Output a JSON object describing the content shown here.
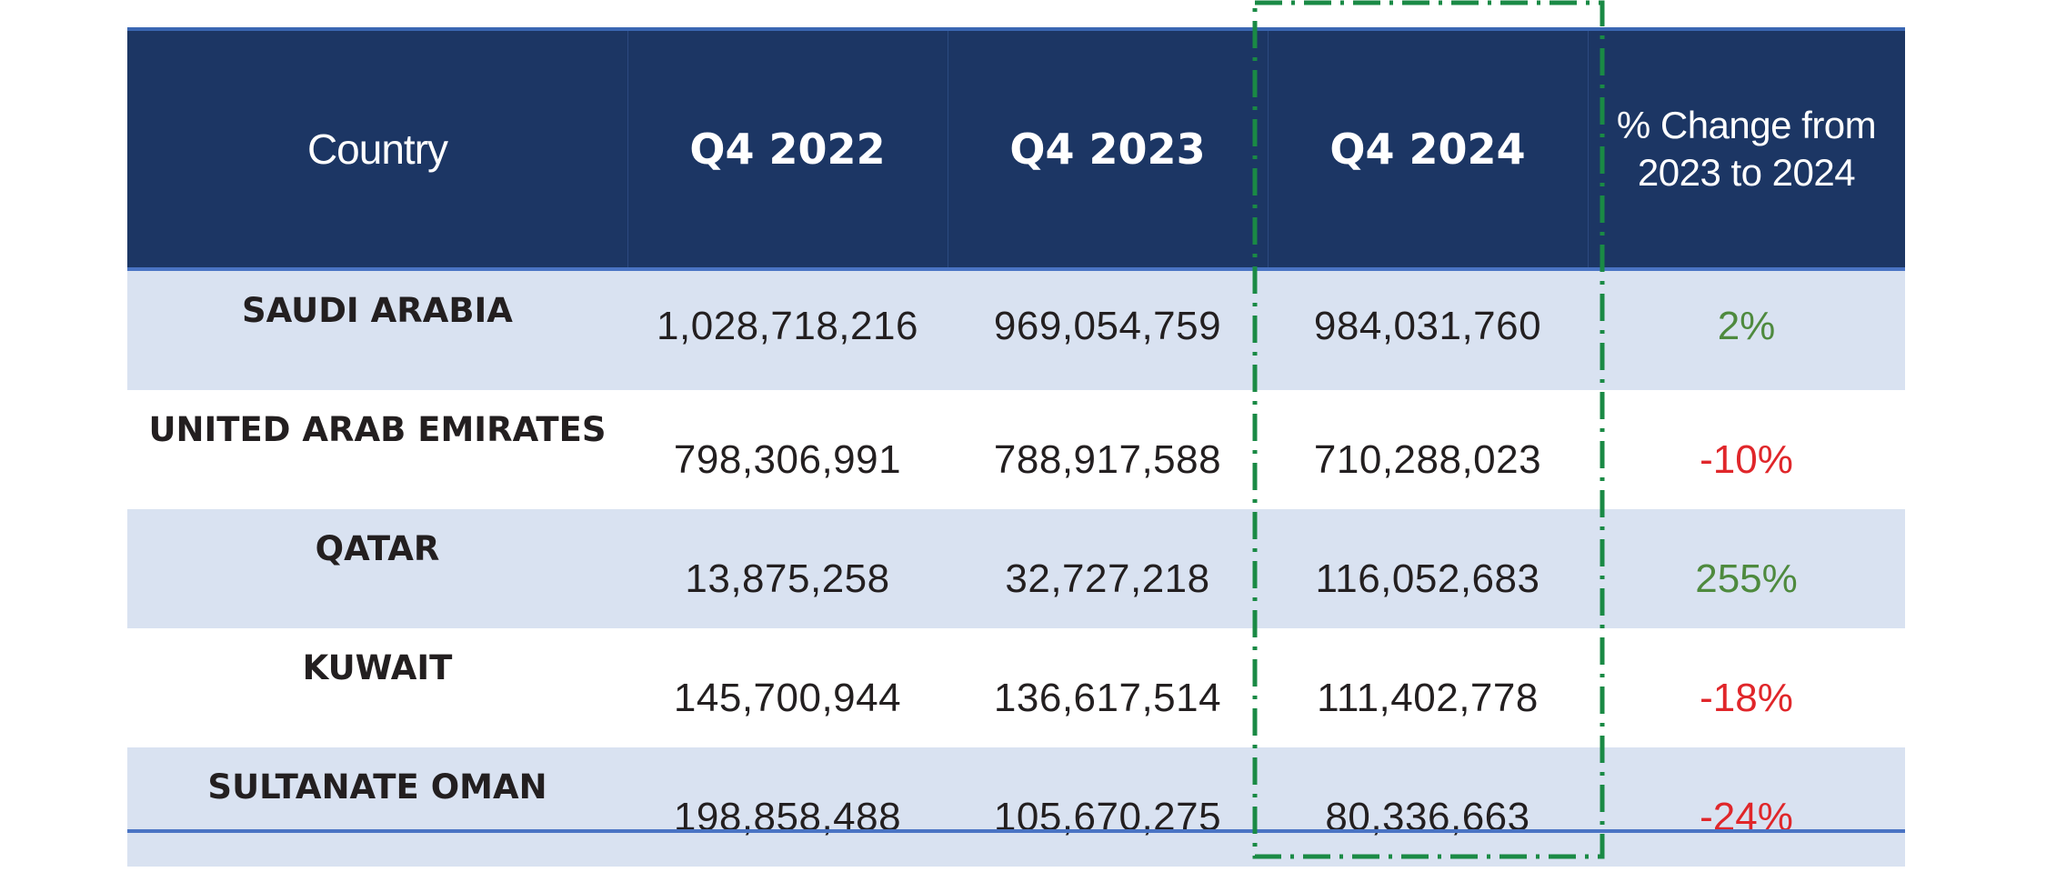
{
  "colors": {
    "header_bg": "#1c3664",
    "row_shade": "#d9e2f1",
    "positive": "#4e8a3e",
    "negative": "#e0262a",
    "highlight_border": "#1a8a45"
  },
  "chart_data": {
    "type": "table",
    "columns": [
      "Country",
      "Q4 2022",
      "Q4 2023",
      "Q4 2024",
      "% Change from 2023 to 2024"
    ],
    "highlighted_column": "Q4 2024",
    "rows": [
      {
        "country": "SAUDI ARABIA",
        "q4_2022": "1,028,718,216",
        "q4_2023": "969,054,759",
        "q4_2024": "984,031,760",
        "pct_change": "2%",
        "trend": "positive"
      },
      {
        "country": "UNITED ARAB EMIRATES",
        "q4_2022": "798,306,991",
        "q4_2023": "788,917,588",
        "q4_2024": "710,288,023",
        "pct_change": "-10%",
        "trend": "negative"
      },
      {
        "country": "QATAR",
        "q4_2022": "13,875,258",
        "q4_2023": "32,727,218",
        "q4_2024": "116,052,683",
        "pct_change": "255%",
        "trend": "positive"
      },
      {
        "country": "KUWAIT",
        "q4_2022": "145,700,944",
        "q4_2023": "136,617,514",
        "q4_2024": "111,402,778",
        "pct_change": "-18%",
        "trend": "negative"
      },
      {
        "country": "SULTANATE OMAN",
        "q4_2022": "198,858,488",
        "q4_2023": "105,670,275",
        "q4_2024": "80,336,663",
        "pct_change": "-24%",
        "trend": "negative"
      }
    ]
  }
}
